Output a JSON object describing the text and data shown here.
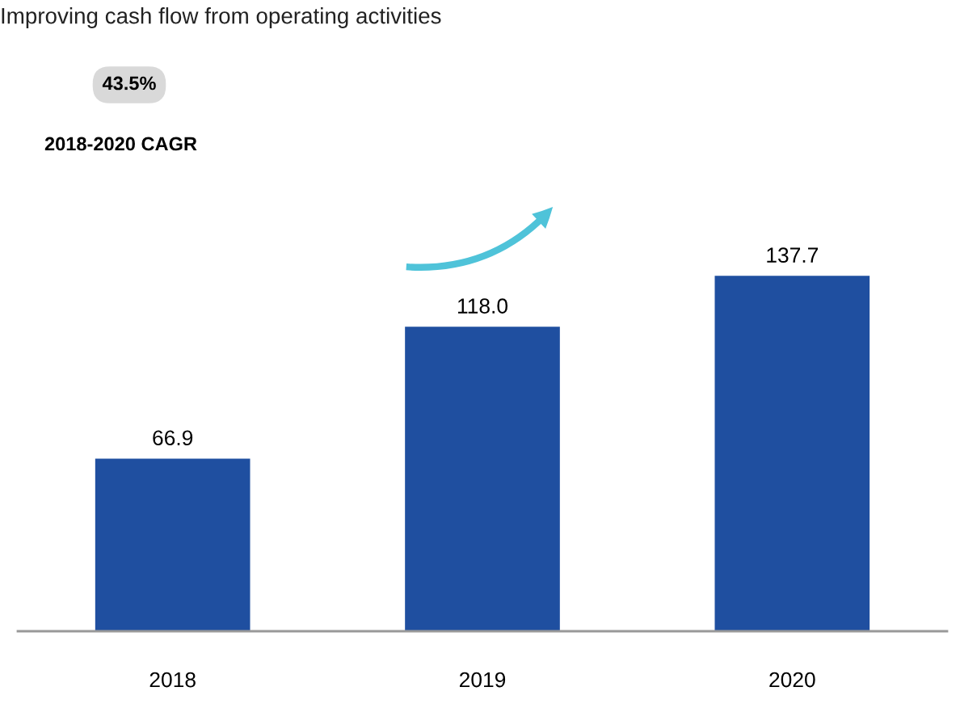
{
  "chart_data": {
    "type": "bar",
    "title": "Improving cash flow from operating activities",
    "categories": [
      "2018",
      "2019",
      "2020"
    ],
    "values": [
      66.9,
      118.0,
      137.7
    ],
    "value_labels": [
      "66.9",
      "118.0",
      "137.7"
    ],
    "color": "#1f4fa0",
    "annotations": [
      "43.5%",
      "2018-2020 CAGR"
    ],
    "grid": false,
    "legend": false,
    "tick_labels": "x"
  }
}
